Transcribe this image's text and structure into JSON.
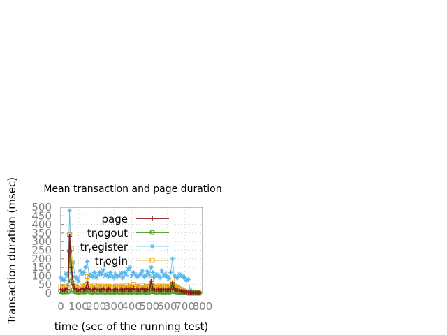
{
  "chart_data": {
    "type": "line",
    "title": "Mean transaction and page duration",
    "xlabel": "time (sec of the running test)",
    "ylabel": "Transaction duration (msec)",
    "xlim": [
      0,
      800
    ],
    "ylim": [
      0,
      500
    ],
    "xticks": [
      0,
      100,
      200,
      300,
      400,
      500,
      600,
      700,
      800
    ],
    "xtick_labels": [
      "0",
      "100",
      "200",
      "300",
      "400",
      "500",
      "600",
      "700",
      "800"
    ],
    "yticks": [
      0,
      50,
      100,
      150,
      200,
      250,
      300,
      350,
      400,
      450,
      500
    ],
    "ytick_labels": [
      "0",
      "50",
      "100",
      "150",
      "200",
      "250",
      "300",
      "350",
      "400",
      "450",
      "500"
    ],
    "grid": true,
    "legend_position": "top-right",
    "series": [
      {
        "name": "tr_register",
        "legend_main": "tr",
        "legend_sub": "r",
        "legend_rest": "egister",
        "color": "#56b4e9",
        "marker": "star",
        "x": [
          0,
          10,
          20,
          30,
          40,
          50,
          60,
          70,
          80,
          90,
          100,
          110,
          120,
          130,
          140,
          150,
          160,
          170,
          180,
          190,
          200,
          210,
          220,
          230,
          240,
          250,
          260,
          270,
          280,
          290,
          300,
          310,
          320,
          330,
          340,
          350,
          360,
          370,
          380,
          390,
          400,
          410,
          420,
          430,
          440,
          450,
          460,
          470,
          480,
          490,
          500,
          510,
          520,
          530,
          540,
          550,
          560,
          570,
          580,
          590,
          600,
          610,
          620,
          630,
          640,
          650,
          660,
          670,
          680,
          690,
          700,
          710,
          720,
          730,
          740,
          750,
          760,
          770,
          780
        ],
        "y": [
          90,
          80,
          75,
          115,
          100,
          480,
          120,
          180,
          95,
          85,
          70,
          130,
          110,
          120,
          150,
          185,
          100,
          110,
          95,
          120,
          90,
          105,
          120,
          110,
          135,
          100,
          110,
          95,
          120,
          100,
          90,
          110,
          95,
          100,
          115,
          90,
          120,
          105,
          140,
          150,
          100,
          120,
          110,
          95,
          100,
          110,
          130,
          95,
          100,
          125,
          105,
          150,
          120,
          95,
          110,
          100,
          90,
          130,
          100,
          110,
          95,
          85,
          120,
          200,
          100,
          95,
          90,
          110,
          100,
          95,
          90,
          75,
          80,
          15,
          10,
          5,
          3,
          2,
          1
        ]
      },
      {
        "name": "tr_login",
        "legend_main": "tr",
        "legend_sub": "l",
        "legend_rest": "ogin",
        "color": "#e69f00",
        "marker": "square",
        "x": [
          0,
          10,
          20,
          30,
          40,
          50,
          60,
          70,
          80,
          90,
          100,
          110,
          120,
          130,
          140,
          150,
          160,
          170,
          180,
          190,
          200,
          210,
          220,
          230,
          240,
          250,
          260,
          270,
          280,
          290,
          300,
          310,
          320,
          330,
          340,
          350,
          360,
          370,
          380,
          390,
          400,
          410,
          420,
          430,
          440,
          450,
          460,
          470,
          480,
          490,
          500,
          510,
          520,
          530,
          540,
          550,
          560,
          570,
          580,
          590,
          600,
          610,
          620,
          630,
          640,
          650,
          660,
          670,
          680,
          690,
          700,
          710,
          720,
          730,
          740,
          750,
          760,
          770,
          780
        ],
        "y": [
          35,
          30,
          25,
          40,
          30,
          340,
          260,
          80,
          40,
          30,
          25,
          35,
          40,
          30,
          45,
          95,
          40,
          35,
          30,
          45,
          35,
          40,
          30,
          35,
          40,
          30,
          35,
          40,
          30,
          35,
          30,
          40,
          35,
          30,
          40,
          35,
          30,
          45,
          35,
          40,
          30,
          50,
          35,
          40,
          30,
          35,
          45,
          30,
          35,
          40,
          30,
          80,
          40,
          35,
          30,
          40,
          35,
          30,
          40,
          35,
          30,
          40,
          35,
          75,
          40,
          35,
          30,
          25,
          20,
          15,
          10,
          5,
          3,
          2,
          1,
          1,
          1,
          1,
          1
        ]
      },
      {
        "name": "tr_logout",
        "legend_main": "tr",
        "legend_sub": "l",
        "legend_rest": "ogout",
        "color": "#4a9a1e",
        "marker": "circle",
        "x": [
          0,
          10,
          20,
          30,
          40,
          50,
          60,
          70,
          80,
          90,
          100,
          110,
          120,
          130,
          140,
          150,
          160,
          170,
          180,
          190,
          200,
          210,
          220,
          230,
          240,
          250,
          260,
          270,
          280,
          290,
          300,
          310,
          320,
          330,
          340,
          350,
          360,
          370,
          380,
          390,
          400,
          410,
          420,
          430,
          440,
          450,
          460,
          470,
          480,
          490,
          500,
          510,
          520,
          530,
          540,
          550,
          560,
          570,
          580,
          590,
          600,
          610,
          620,
          630,
          640,
          650,
          660,
          670,
          680,
          690,
          700,
          710,
          720,
          730,
          740,
          750,
          760,
          770,
          780
        ],
        "y": [
          10,
          8,
          8,
          10,
          9,
          245,
          70,
          20,
          10,
          8,
          6,
          8,
          10,
          8,
          9,
          20,
          10,
          8,
          7,
          9,
          8,
          7,
          9,
          8,
          8,
          7,
          8,
          9,
          7,
          8,
          7,
          8,
          9,
          7,
          8,
          7,
          8,
          9,
          7,
          8,
          7,
          9,
          8,
          7,
          8,
          7,
          9,
          8,
          7,
          8,
          7,
          50,
          10,
          8,
          7,
          8,
          9,
          7,
          8,
          7,
          8,
          7,
          9,
          50,
          10,
          8,
          7,
          6,
          5,
          4,
          3,
          2,
          1,
          1,
          1,
          1,
          1,
          1,
          1
        ]
      },
      {
        "name": "page",
        "legend_main": "page",
        "color": "#8b1a1a",
        "marker": "plus",
        "x": [
          0,
          10,
          20,
          30,
          40,
          50,
          60,
          70,
          80,
          90,
          100,
          110,
          120,
          130,
          140,
          150,
          160,
          170,
          180,
          190,
          200,
          210,
          220,
          230,
          240,
          250,
          260,
          270,
          280,
          290,
          300,
          310,
          320,
          330,
          340,
          350,
          360,
          370,
          380,
          390,
          400,
          410,
          420,
          430,
          440,
          450,
          460,
          470,
          480,
          490,
          500,
          510,
          520,
          530,
          540,
          550,
          560,
          570,
          580,
          590,
          600,
          610,
          620,
          630,
          640,
          650,
          660,
          670,
          680,
          690,
          700,
          710,
          720,
          730,
          740,
          750,
          760,
          770,
          780
        ],
        "y": [
          20,
          18,
          15,
          25,
          20,
          330,
          150,
          50,
          25,
          20,
          15,
          20,
          25,
          20,
          25,
          60,
          25,
          20,
          18,
          25,
          20,
          22,
          18,
          20,
          25,
          18,
          20,
          25,
          18,
          20,
          18,
          22,
          20,
          18,
          22,
          20,
          18,
          25,
          20,
          22,
          18,
          30,
          20,
          22,
          18,
          20,
          25,
          18,
          20,
          22,
          18,
          70,
          25,
          20,
          18,
          22,
          20,
          18,
          22,
          20,
          18,
          22,
          20,
          60,
          25,
          20,
          18,
          15,
          12,
          10,
          8,
          5,
          3,
          2,
          1,
          1,
          1,
          1,
          1
        ]
      }
    ],
    "legend_order": [
      "page",
      "tr_logout",
      "tr_register",
      "tr_login"
    ]
  }
}
